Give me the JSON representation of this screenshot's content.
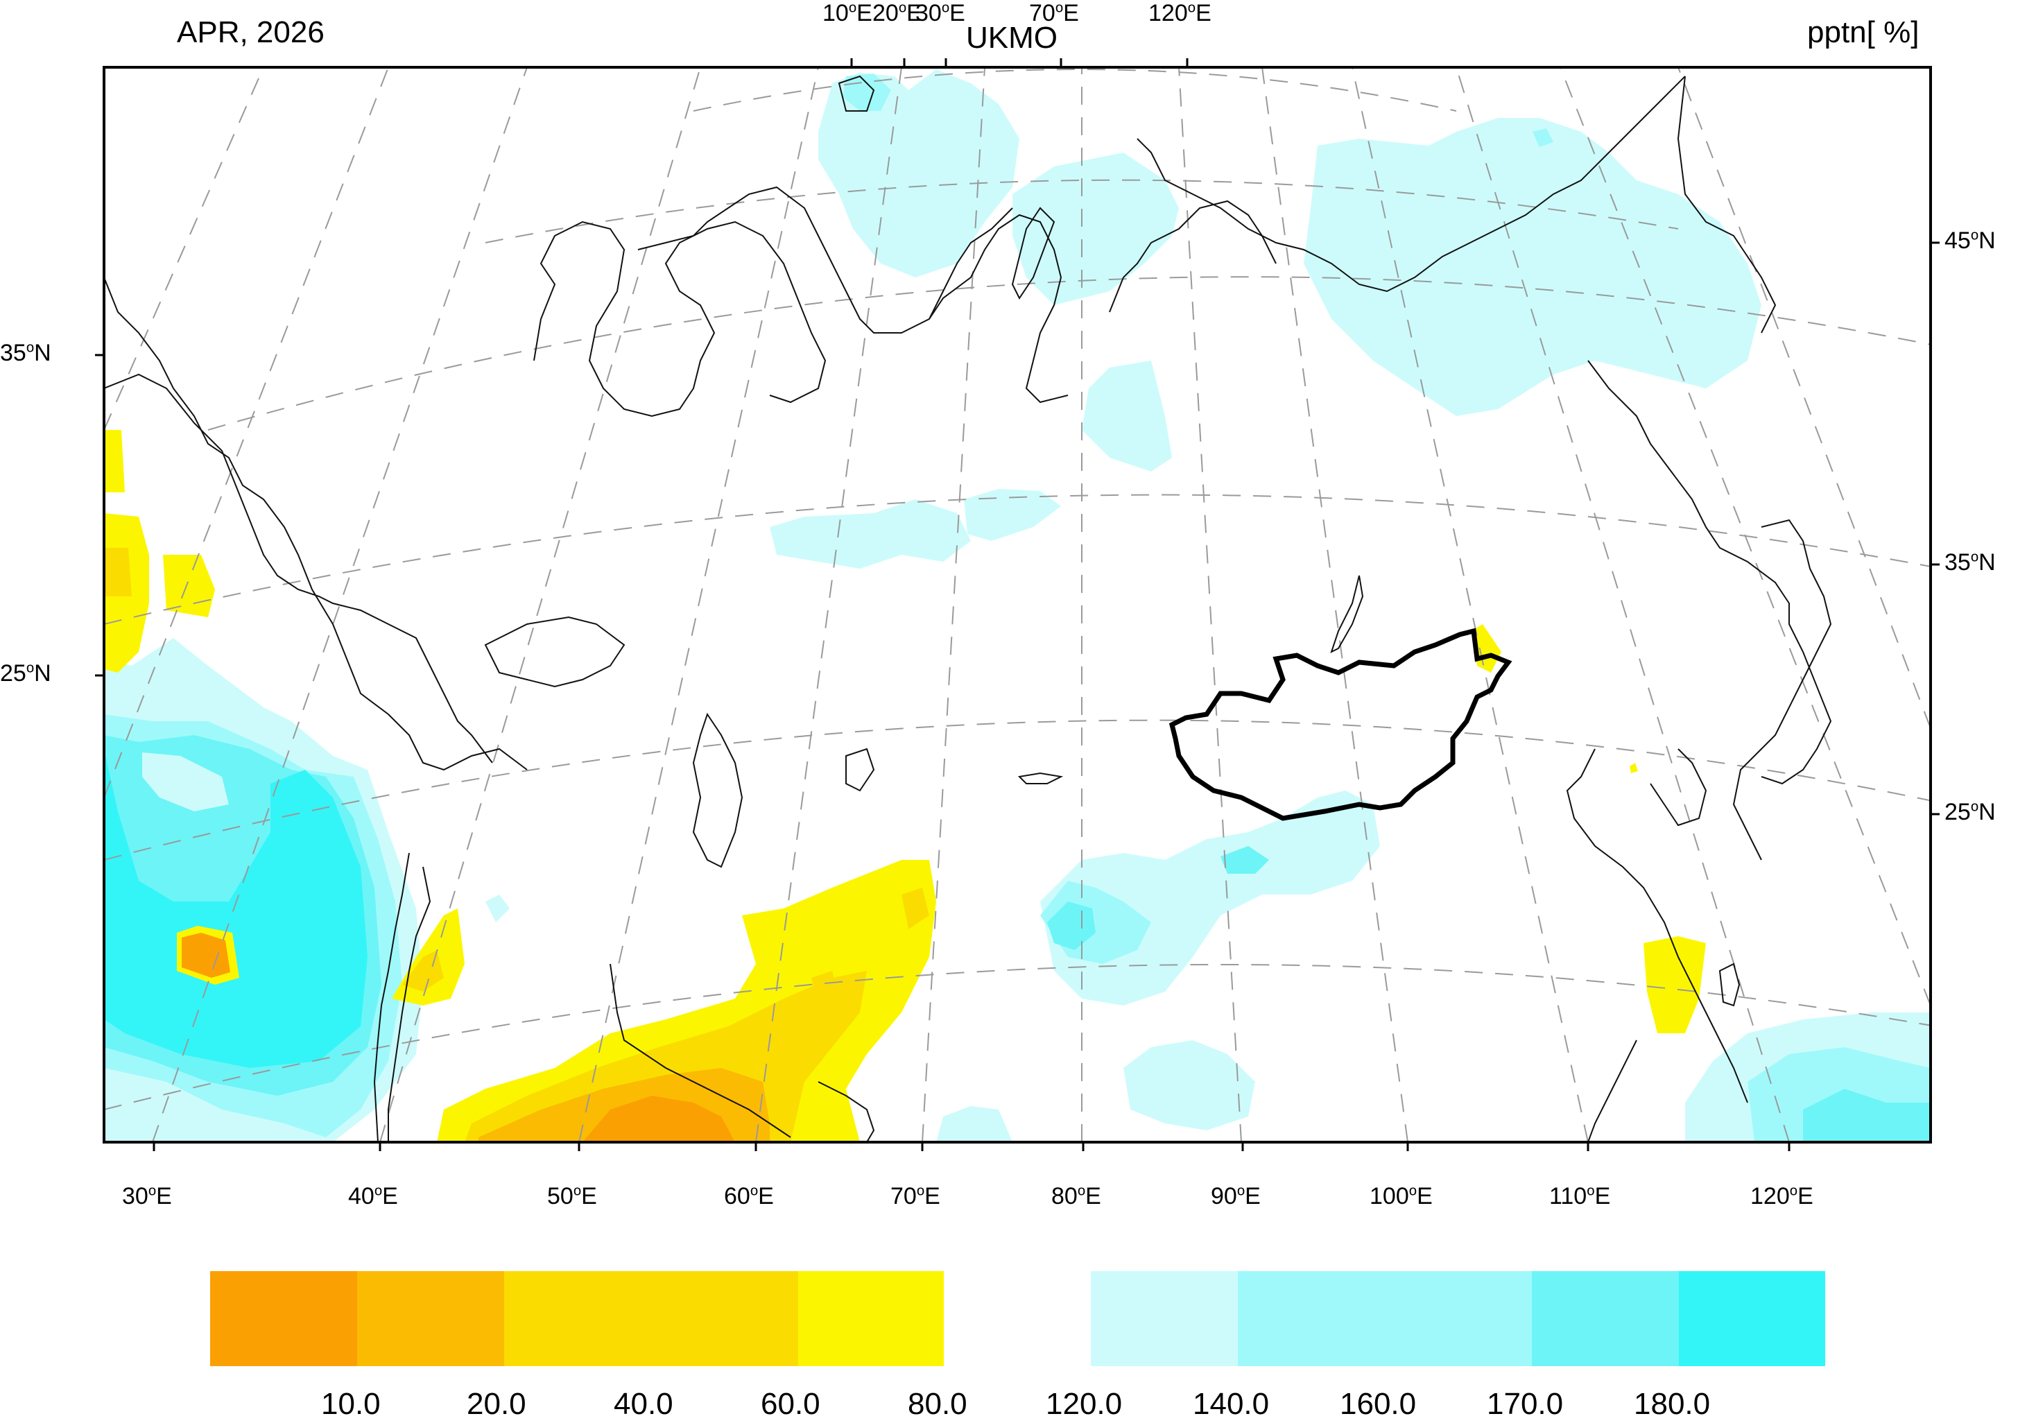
{
  "title_left": "APR, 2026",
  "title_center": "UKMO",
  "title_right": "pptn[ %]",
  "degree_symbol": "o",
  "bottom_ticks": [
    "30",
    "40",
    "50",
    "60",
    "70",
    "80",
    "90",
    "100",
    "110",
    "120"
  ],
  "bottom_tick_suffix": "E",
  "top_ticks": [
    "10",
    "20",
    "30",
    "70",
    "120"
  ],
  "top_tick_suffix": "E",
  "left_ticks": [
    "35",
    "25"
  ],
  "left_tick_suffix": "N",
  "right_ticks": [
    "45",
    "35",
    "25"
  ],
  "right_tick_suffix": "N",
  "colorbar": {
    "dry": {
      "colors": [
        "#fba003",
        "#fbbb02",
        "#fbdc01",
        "#fbf600"
      ],
      "labels": [
        "10.0",
        "20.0",
        "40.0",
        "60.0",
        "80.0"
      ]
    },
    "wet": {
      "colors": [
        "#cdfbfb",
        "#9ff9fb",
        "#6df4f7",
        "#33f5f7"
      ],
      "labels": [
        "120.0",
        "140.0",
        "160.0",
        "170.0",
        "180.0"
      ]
    }
  },
  "colors": {
    "frame": "#000000",
    "grid": "#9a9a9a",
    "coast": "#111111",
    "mongolia_border": "#000000"
  }
}
